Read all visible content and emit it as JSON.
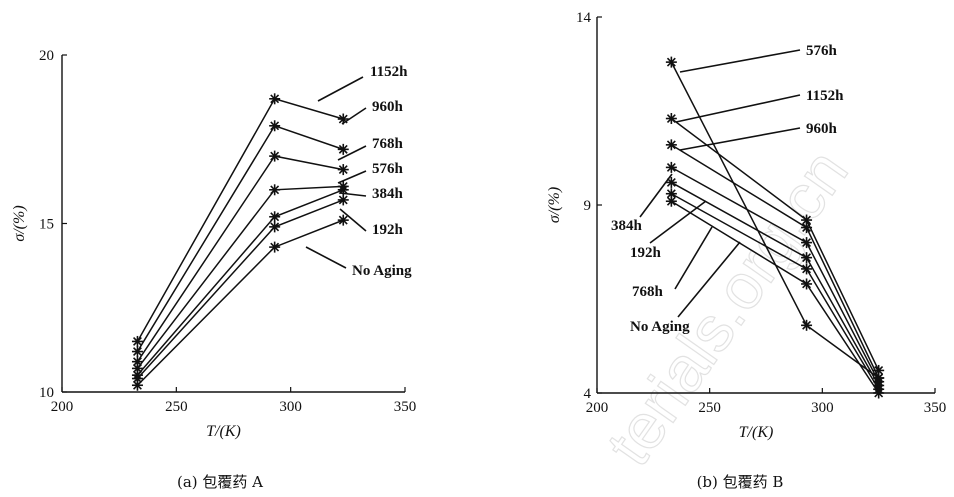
{
  "chart_data": [
    {
      "type": "line",
      "caption": "(a) 包覆药 A",
      "xlabel": "T/(K)",
      "ylabel": "σ/(%)",
      "xlim": [
        200,
        350
      ],
      "ylim": [
        10,
        20
      ],
      "xticks": [
        200,
        250,
        300,
        350
      ],
      "yticks": [
        10,
        15,
        20
      ],
      "x": [
        233,
        293,
        323
      ],
      "series": [
        {
          "name": "1152h",
          "values": [
            11.5,
            18.7,
            18.1
          ]
        },
        {
          "name": "960h",
          "values": [
            11.2,
            17.9,
            17.2
          ]
        },
        {
          "name": "768h",
          "values": [
            10.9,
            17.0,
            16.6
          ]
        },
        {
          "name": "576h",
          "values": [
            10.7,
            16.0,
            16.1
          ]
        },
        {
          "name": "384h",
          "values": [
            10.5,
            15.2,
            16.0
          ]
        },
        {
          "name": "192h",
          "values": [
            10.4,
            14.9,
            15.7
          ]
        },
        {
          "name": "No Aging",
          "values": [
            10.2,
            14.3,
            15.1
          ]
        }
      ]
    },
    {
      "type": "line",
      "caption": "(b) 包覆药 B",
      "xlabel": "T/(K)",
      "ylabel": "σ/(%)",
      "xlim": [
        200,
        350
      ],
      "ylim": [
        4,
        14
      ],
      "xticks": [
        200,
        250,
        300,
        350
      ],
      "yticks": [
        4,
        9,
        14
      ],
      "x": [
        233,
        293,
        325
      ],
      "series": [
        {
          "name": "576h",
          "values": [
            12.8,
            5.8,
            4.4
          ]
        },
        {
          "name": "1152h",
          "values": [
            11.3,
            8.6,
            4.6
          ]
        },
        {
          "name": "960h",
          "values": [
            10.6,
            8.4,
            4.4
          ]
        },
        {
          "name": "384h",
          "values": [
            10.0,
            8.0,
            4.3
          ]
        },
        {
          "name": "192h",
          "values": [
            9.6,
            7.6,
            4.2
          ]
        },
        {
          "name": "768h",
          "values": [
            9.3,
            7.3,
            4.1
          ]
        },
        {
          "name": "No Aging",
          "values": [
            9.1,
            6.9,
            4.0
          ]
        }
      ]
    }
  ]
}
